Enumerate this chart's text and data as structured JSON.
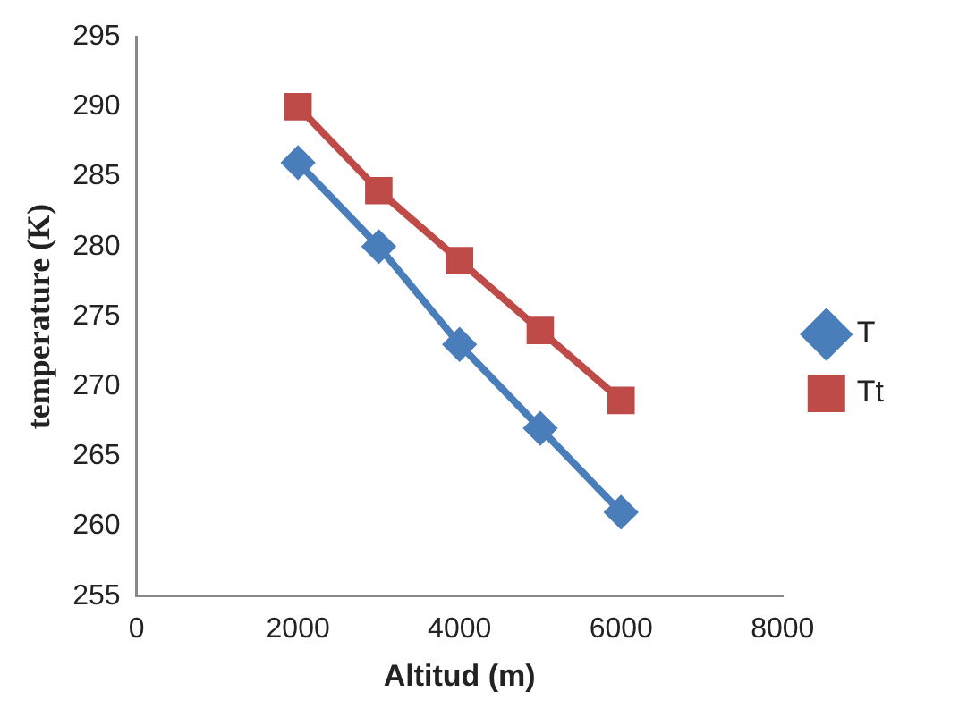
{
  "chart_data": {
    "type": "line",
    "xlabel": "Altitud (m)",
    "ylabel": "temperature (K)",
    "x": [
      2000,
      3000,
      4000,
      5000,
      6000
    ],
    "series": [
      {
        "name": "T",
        "color": "#4a7ebb",
        "values": [
          286,
          280,
          273,
          267,
          261
        ],
        "marker": "diamond"
      },
      {
        "name": "Tt",
        "color": "#be4b48",
        "values": [
          290,
          284,
          279,
          274,
          269
        ],
        "marker": "square"
      }
    ],
    "xlim": [
      0,
      8000
    ],
    "xticks": [
      0,
      2000,
      4000,
      6000,
      8000
    ],
    "ylim": [
      255,
      295
    ],
    "yticks": [
      255,
      260,
      265,
      270,
      275,
      280,
      285,
      290,
      295
    ],
    "grid": false,
    "legend": "right",
    "line_style": "solid"
  }
}
